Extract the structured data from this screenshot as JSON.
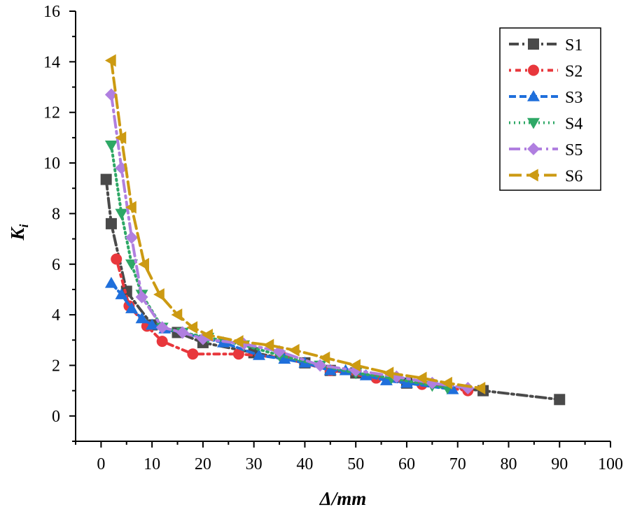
{
  "chart_data": {
    "type": "line",
    "title": "",
    "xlabel": "Δ/mm",
    "ylabel": "K_i",
    "ylabel_main": "K",
    "ylabel_sub": "i",
    "xlim": [
      -5,
      100
    ],
    "ylim": [
      -1,
      16
    ],
    "xticks": [
      0,
      10,
      20,
      30,
      40,
      50,
      60,
      70,
      80,
      90,
      100
    ],
    "yticks": [
      0,
      2,
      4,
      6,
      8,
      10,
      12,
      14,
      16
    ],
    "grid": false,
    "legend_position": "top-right",
    "series": [
      {
        "name": "S1",
        "color": "#4a4a4a",
        "marker": "square",
        "dash": "14,5,3,5",
        "x": [
          1,
          2,
          5,
          10,
          15,
          20,
          30,
          40,
          45,
          50,
          60,
          75,
          90
        ],
        "y": [
          9.35,
          7.6,
          4.93,
          3.6,
          3.3,
          2.9,
          2.5,
          2.1,
          1.8,
          1.7,
          1.3,
          1.0,
          0.65
        ]
      },
      {
        "name": "S2",
        "color": "#e8373c",
        "marker": "circle",
        "dash": "3,6,8,6",
        "x": [
          3,
          5.5,
          9,
          12,
          18,
          27,
          36,
          45,
          54,
          63,
          72
        ],
        "y": [
          6.2,
          4.35,
          3.55,
          2.95,
          2.45,
          2.45,
          2.3,
          1.8,
          1.5,
          1.25,
          1.0
        ]
      },
      {
        "name": "S3",
        "color": "#1f6fdb",
        "marker": "triangle-up",
        "dash": "10,5",
        "x": [
          2,
          4,
          6,
          8,
          10,
          12.5,
          24,
          31,
          36,
          40,
          45,
          48,
          52,
          56,
          60,
          69
        ],
        "y": [
          5.25,
          4.8,
          4.25,
          3.85,
          3.6,
          3.45,
          2.9,
          2.4,
          2.25,
          2.1,
          1.8,
          1.8,
          1.6,
          1.4,
          1.3,
          1.05
        ]
      },
      {
        "name": "S4",
        "color": "#2ea866",
        "marker": "triangle-down",
        "dash": "2,5",
        "x": [
          2,
          4,
          6,
          8,
          12,
          16,
          21,
          28,
          35,
          43,
          50,
          57,
          65,
          68
        ],
        "y": [
          10.7,
          8.0,
          6.0,
          4.8,
          3.5,
          3.3,
          3.1,
          2.8,
          2.4,
          2.0,
          1.7,
          1.5,
          1.2,
          1.1
        ]
      },
      {
        "name": "S5",
        "color": "#b07fe0",
        "marker": "diamond",
        "dash": "16,6,3,6",
        "x": [
          2,
          4,
          6,
          8,
          12,
          16,
          20,
          28,
          35,
          43,
          50,
          58,
          65,
          72
        ],
        "y": [
          12.7,
          9.8,
          7.05,
          4.7,
          3.5,
          3.3,
          3.05,
          2.85,
          2.55,
          2.0,
          1.8,
          1.55,
          1.3,
          1.1
        ]
      },
      {
        "name": "S6",
        "color": "#cc9a12",
        "marker": "triangle-left",
        "dash": "18,7",
        "x": [
          2,
          4,
          6,
          8.5,
          11.5,
          15,
          18,
          21,
          27,
          33,
          38,
          44,
          50,
          56.5,
          63,
          68,
          74.5
        ],
        "y": [
          14.05,
          11.0,
          8.25,
          6.0,
          4.8,
          4.0,
          3.5,
          3.2,
          2.95,
          2.8,
          2.6,
          2.3,
          2.0,
          1.7,
          1.5,
          1.3,
          1.1
        ]
      }
    ]
  }
}
